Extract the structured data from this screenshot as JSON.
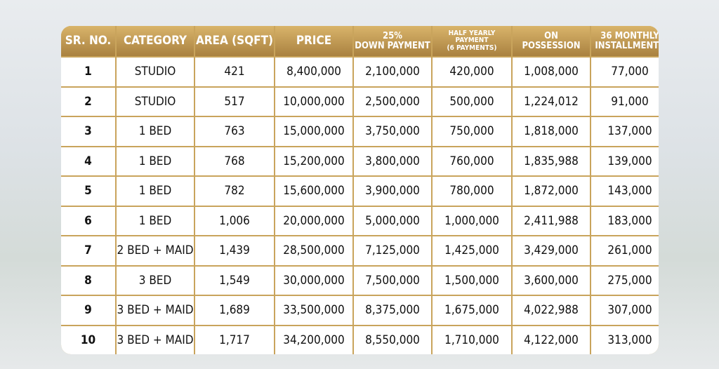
{
  "table": {
    "headers": [
      [
        "SR. NO."
      ],
      [
        "CATEGORY"
      ],
      [
        "AREA (SQFT)"
      ],
      [
        "PRICE"
      ],
      [
        "25%",
        "DOWN PAYMENT"
      ],
      [
        "HALF YEARLY",
        "PAYMENT",
        "(6 PAYMENTS)"
      ],
      [
        "ON",
        "POSSESSION"
      ],
      [
        "36 MONTHLY",
        "INSTALLMENTS"
      ]
    ],
    "rows": [
      [
        "1",
        "STUDIO",
        "421",
        "8,400,000",
        "2,100,000",
        "420,000",
        "1,008,000",
        "77,000"
      ],
      [
        "2",
        "STUDIO",
        "517",
        "10,000,000",
        "2,500,000",
        "500,000",
        "1,224,012",
        "91,000"
      ],
      [
        "3",
        "1 BED",
        "763",
        "15,000,000",
        "3,750,000",
        "750,000",
        "1,818,000",
        "137,000"
      ],
      [
        "4",
        "1 BED",
        "768",
        "15,200,000",
        "3,800,000",
        "760,000",
        "1,835,988",
        "139,000"
      ],
      [
        "5",
        "1 BED",
        "782",
        "15,600,000",
        "3,900,000",
        "780,000",
        "1,872,000",
        "143,000"
      ],
      [
        "6",
        "1 BED",
        "1,006",
        "20,000,000",
        "5,000,000",
        "1,000,000",
        "2,411,988",
        "183,000"
      ],
      [
        "7",
        "2 BED + MAID",
        "1,439",
        "28,500,000",
        "7,125,000",
        "1,425,000",
        "3,429,000",
        "261,000"
      ],
      [
        "8",
        "3 BED",
        "1,549",
        "30,000,000",
        "7,500,000",
        "1,500,000",
        "3,600,000",
        "275,000"
      ],
      [
        "9",
        "3 BED + MAID",
        "1,689",
        "33,500,000",
        "8,375,000",
        "1,675,000",
        "4,022,988",
        "307,000"
      ],
      [
        "10",
        "3 BED + MAID",
        "1,717",
        "34,200,000",
        "8,550,000",
        "1,710,000",
        "4,122,000",
        "313,000"
      ]
    ]
  }
}
